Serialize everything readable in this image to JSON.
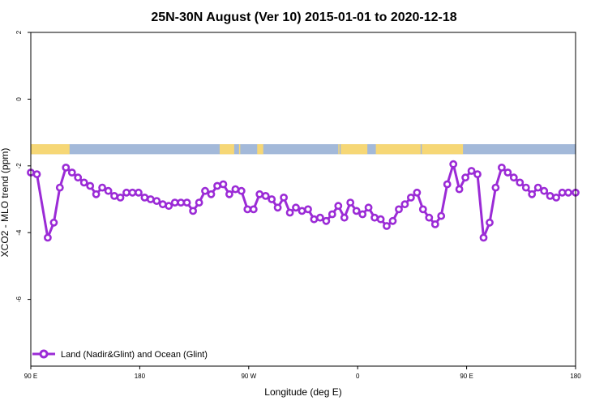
{
  "chart_data": {
    "type": "line",
    "title": "25N-30N August (Ver 10)   2015-01-01 to 2020-12-18",
    "xlabel": "Longitude (deg E)",
    "ylabel": "XCO2 - MLO trend (ppm)",
    "xlim": [
      90,
      540
    ],
    "ylim": [
      -8,
      2
    ],
    "x_ticks": [
      {
        "value": 90,
        "label": "90 E"
      },
      {
        "value": 180,
        "label": "180"
      },
      {
        "value": 270,
        "label": "90 W"
      },
      {
        "value": 360,
        "label": "0"
      },
      {
        "value": 450,
        "label": "90 E"
      },
      {
        "value": 540,
        "label": "180"
      }
    ],
    "y_ticks": [
      {
        "value": 2,
        "label": "2"
      },
      {
        "value": 0,
        "label": "0"
      },
      {
        "value": -2,
        "label": "-2"
      },
      {
        "value": -4,
        "label": "-4"
      },
      {
        "value": -6,
        "label": "-6"
      }
    ],
    "grid": false,
    "legend_position": "bottom-left",
    "land_mask": {
      "y_range": [
        -1.65,
        -1.35
      ],
      "ocean_color": "#a3b9d9",
      "land_color": "#f6d776",
      "land_segments": [
        [
          90,
          122
        ],
        [
          246,
          258
        ],
        [
          262,
          263
        ],
        [
          277,
          282
        ],
        [
          344,
          345
        ],
        [
          346,
          368
        ],
        [
          375,
          412
        ],
        [
          413,
          447
        ]
      ]
    },
    "series": [
      {
        "name": "Land (Nadir&Glint) and Ocean (Glint)",
        "color": "#9b2bd6",
        "marker": "open-circle",
        "x": [
          90,
          95,
          104,
          109,
          114,
          119,
          124,
          129,
          134,
          139,
          144,
          149,
          154,
          159,
          164,
          169,
          174,
          179,
          184,
          189,
          194,
          199,
          204,
          209,
          214,
          219,
          224,
          229,
          234,
          239,
          244,
          249,
          254,
          259,
          264,
          269,
          274,
          279,
          284,
          289,
          294,
          299,
          304,
          309,
          314,
          319,
          324,
          329,
          334,
          339,
          344,
          349,
          354,
          359,
          364,
          369,
          374,
          379,
          384,
          389,
          394,
          399,
          404,
          409,
          414,
          419,
          424,
          429,
          434,
          439,
          444,
          449,
          454,
          459,
          464,
          469,
          474,
          479,
          484,
          489,
          494,
          499,
          504,
          509,
          514,
          519,
          524,
          529,
          534,
          540
        ],
        "y": [
          -2.2,
          -2.25,
          -4.15,
          -3.7,
          -2.65,
          -2.05,
          -2.2,
          -2.35,
          -2.5,
          -2.6,
          -2.85,
          -2.65,
          -2.75,
          -2.9,
          -2.95,
          -2.8,
          -2.8,
          -2.8,
          -2.95,
          -3.0,
          -3.05,
          -3.15,
          -3.2,
          -3.1,
          -3.1,
          -3.1,
          -3.35,
          -3.1,
          -2.75,
          -2.85,
          -2.6,
          -2.55,
          -2.85,
          -2.7,
          -2.75,
          -3.3,
          -3.3,
          -2.85,
          -2.9,
          -3.0,
          -3.25,
          -2.95,
          -3.4,
          -3.25,
          -3.35,
          -3.3,
          -3.6,
          -3.55,
          -3.65,
          -3.45,
          -3.2,
          -3.55,
          -3.1,
          -3.35,
          -3.45,
          -3.25,
          -3.55,
          -3.6,
          -3.8,
          -3.65,
          -3.3,
          -3.15,
          -2.95,
          -2.8,
          -3.3,
          -3.55,
          -3.75,
          -3.5,
          -2.55,
          -1.95,
          -2.7,
          -2.35,
          -2.15,
          -2.25,
          -4.15,
          -3.7,
          -2.65,
          -2.05,
          -2.2,
          -2.35,
          -2.5,
          -2.65,
          -2.85,
          -2.65,
          -2.75,
          -2.9,
          -2.95,
          -2.8,
          -2.8,
          -2.8
        ]
      }
    ]
  }
}
